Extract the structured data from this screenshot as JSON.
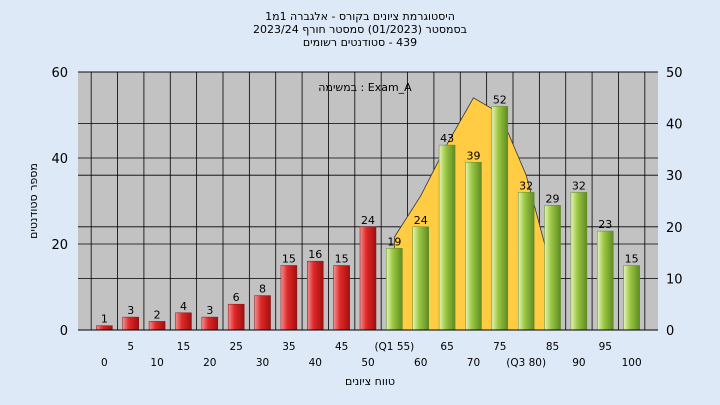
{
  "chart_data": {
    "type": "bar",
    "title_lines": [
      "היסטוגרמת ציונים בקורס - אלגברה 1מ1",
      "בסמסטר (01/2023) סמסטר חורף 2023/24",
      "439 - סטודנטים רשומים"
    ],
    "assignment_label": "במשימה : Exam_A",
    "xlabel": "טווח ציונים",
    "ylabel": "מספר סטודנטים",
    "ylim_left": [
      0,
      60
    ],
    "yticks_left": [
      0,
      20,
      40,
      60
    ],
    "ylim_right": [
      0,
      50
    ],
    "yticks_right": [
      0,
      10,
      20,
      30,
      40,
      50
    ],
    "grid": true,
    "categories": [
      "0",
      "5",
      "10",
      "15",
      "20",
      "25",
      "30",
      "35",
      "40",
      "45",
      "50",
      "(Q1 55)",
      "60",
      "65",
      "70",
      "75",
      "(Q3 80)",
      "85",
      "90",
      "95",
      "100"
    ],
    "values": [
      1,
      3,
      2,
      4,
      3,
      6,
      8,
      15,
      16,
      15,
      24,
      19,
      24,
      43,
      39,
      52,
      32,
      29,
      32,
      23,
      15
    ],
    "bar_colors": {
      "fail": "#e02828",
      "pass": "#8fbf3a",
      "first_pass_index": 11
    },
    "distribution_curve": {
      "color": "#ffcc44",
      "axis": "right",
      "points": [
        {
          "x": "(Q1 55)",
          "y": 18
        },
        {
          "x": "60",
          "y": 26
        },
        {
          "x": "65",
          "y": 36
        },
        {
          "x": "70",
          "y": 45
        },
        {
          "x": "75",
          "y": 42
        },
        {
          "x": "(Q3 80)",
          "y": 30
        },
        {
          "x": "85",
          "y": 11
        }
      ]
    },
    "colors": {
      "background": "#dde9f7",
      "plot_background": "#c2c2c2",
      "grid": "#000000"
    }
  }
}
